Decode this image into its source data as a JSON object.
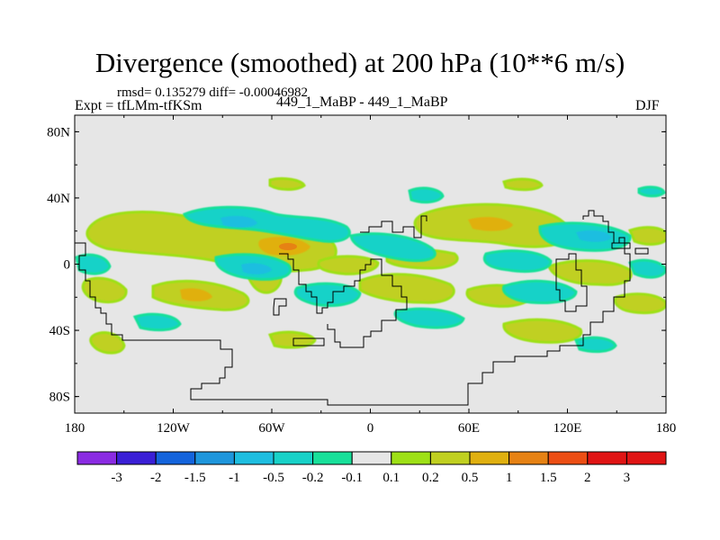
{
  "header": {
    "title": "Divergence (smoothed) at 200 hPa (10**6 m/s)",
    "stats": "rmsd= 0.135279 diff= -0.00046982",
    "experiment": "Expt = tfLMm-tfKSm",
    "runs": "449_1_MaBP - 449_1_MaBP",
    "season": "DJF"
  },
  "map": {
    "projection": "cylindrical-equidistant",
    "lon_range": [
      -180,
      180
    ],
    "lat_range": [
      -90,
      90
    ],
    "x_ticks": [
      {
        "value": -180,
        "label": "180"
      },
      {
        "value": -120,
        "label": "120W"
      },
      {
        "value": -60,
        "label": "60W"
      },
      {
        "value": 0,
        "label": "0"
      },
      {
        "value": 60,
        "label": "60E"
      },
      {
        "value": 120,
        "label": "120E"
      },
      {
        "value": 180,
        "label": "180"
      }
    ],
    "y_ticks": [
      {
        "value": 80,
        "label": "80N"
      },
      {
        "value": 40,
        "label": "40N"
      },
      {
        "value": 0,
        "label": "0"
      },
      {
        "value": -40,
        "label": "40S"
      },
      {
        "value": -80,
        "label": "80S"
      }
    ],
    "background_color": "#e6e6e6",
    "coastline_color": "#000000"
  },
  "colorbar": {
    "labels": [
      "-3",
      "-2",
      "-1.5",
      "-1",
      "-0.5",
      "-0.2",
      "-0.1",
      "0.1",
      "0.2",
      "0.5",
      "1",
      "1.5",
      "2",
      "3"
    ],
    "colors": [
      "#8a2be2",
      "#3a1fd6",
      "#1464dc",
      "#1e96dc",
      "#1ebee0",
      "#18d2c8",
      "#18e09a",
      "#e6e6e6",
      "#9ee016",
      "#c0d020",
      "#e0b010",
      "#e68214",
      "#ec4e14",
      "#e01414",
      "#e01414"
    ]
  }
}
